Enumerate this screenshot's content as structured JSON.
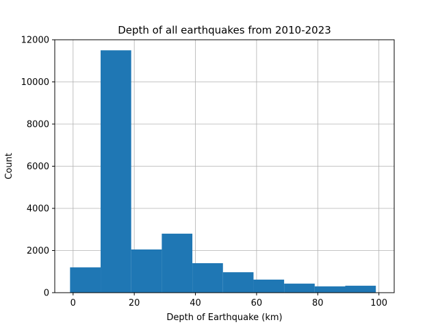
{
  "chart_data": {
    "type": "bar",
    "title": "Depth of all earthquakes from 2010-2023",
    "xlabel": "Depth of Earthquake (km)",
    "ylabel": "Count",
    "bins": [
      {
        "start": -1,
        "end": 9,
        "count": 1200
      },
      {
        "start": 9,
        "end": 19,
        "count": 11500
      },
      {
        "start": 19,
        "end": 29,
        "count": 2050
      },
      {
        "start": 29,
        "end": 39,
        "count": 2800
      },
      {
        "start": 39,
        "end": 49,
        "count": 1400
      },
      {
        "start": 49,
        "end": 59,
        "count": 970
      },
      {
        "start": 59,
        "end": 69,
        "count": 620
      },
      {
        "start": 69,
        "end": 79,
        "count": 430
      },
      {
        "start": 79,
        "end": 89,
        "count": 300
      },
      {
        "start": 89,
        "end": 99,
        "count": 330
      }
    ],
    "xlim": [
      -6,
      105
    ],
    "ylim": [
      0,
      12000
    ],
    "xticks": [
      0,
      20,
      40,
      60,
      80,
      100
    ],
    "yticks": [
      0,
      2000,
      4000,
      6000,
      8000,
      10000,
      12000
    ],
    "grid": true,
    "bar_color": "#1f77b4"
  }
}
